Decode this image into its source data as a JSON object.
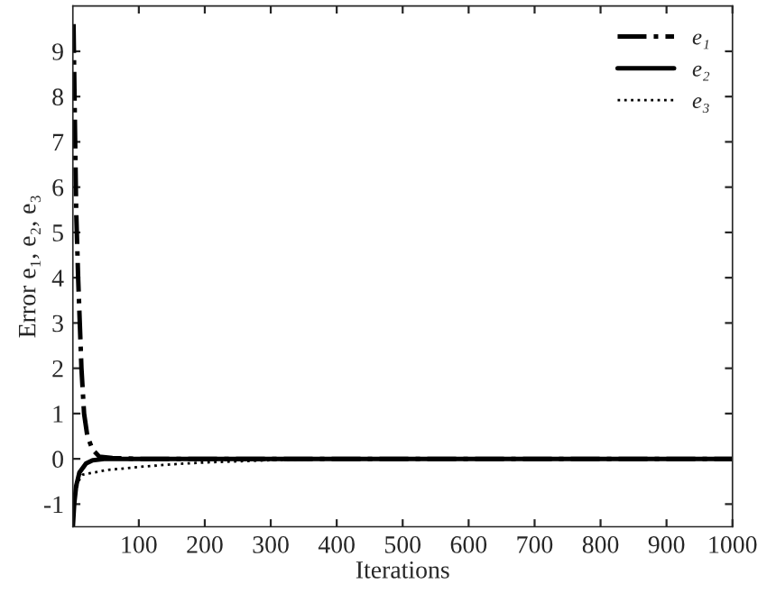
{
  "chart_data": {
    "type": "line",
    "xlabel": "Iterations",
    "ylabel": "Error e₁, e₂, e₃",
    "xlim": [
      0,
      1000
    ],
    "xticks": [
      100,
      200,
      300,
      400,
      500,
      600,
      700,
      800,
      900,
      1000
    ],
    "ylim": [
      -1.5,
      10
    ],
    "yticks": [
      -1,
      0,
      1,
      2,
      3,
      4,
      5,
      6,
      7,
      8,
      9
    ],
    "grid": false,
    "legend": "top right",
    "marker": "none",
    "series": [
      {
        "name": "e₁",
        "color": "#000000",
        "line_style": "dashdot",
        "x": [
          1,
          3,
          5,
          8,
          10,
          13,
          17,
          22,
          30,
          40,
          60,
          100,
          1000
        ],
        "values": [
          9.6,
          7.5,
          5.5,
          4,
          3.2,
          2,
          1,
          0.5,
          0.2,
          0.05,
          0.02,
          0,
          0
        ]
      },
      {
        "name": "e₂",
        "color": "#000000",
        "line_style": "solid",
        "x": [
          0,
          2,
          5,
          10,
          20,
          30,
          50,
          1000
        ],
        "values": [
          -1.5,
          -1,
          -0.6,
          -0.3,
          -0.1,
          -0.03,
          0,
          0
        ]
      },
      {
        "name": "e₃",
        "color": "#000000",
        "line_style": "dotted",
        "x": [
          0,
          3,
          8,
          15,
          50,
          100,
          150,
          200,
          300,
          400,
          1000
        ],
        "values": [
          -1.5,
          -0.9,
          -0.5,
          -0.35,
          -0.25,
          -0.18,
          -0.12,
          -0.08,
          -0.03,
          0,
          0
        ]
      }
    ]
  }
}
